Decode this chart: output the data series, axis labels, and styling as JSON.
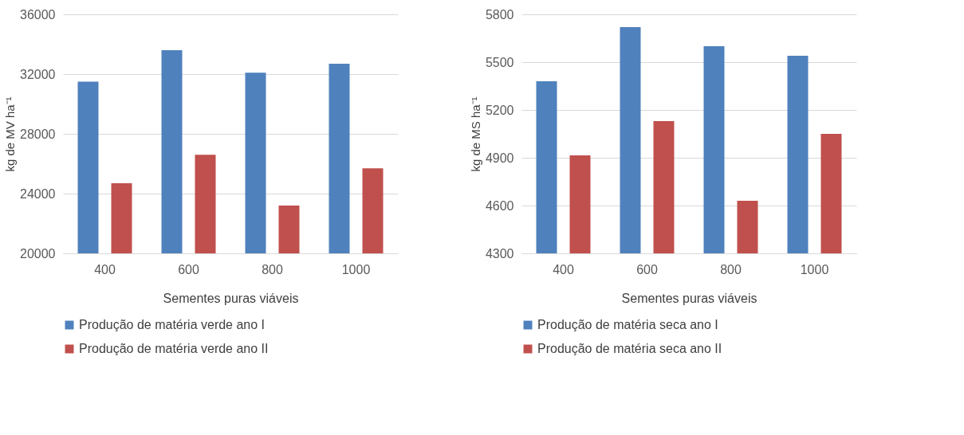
{
  "chart_data": [
    {
      "type": "bar",
      "xlabel": "Sementes puras viáveis",
      "ylabel": "kg de MV ha⁻¹",
      "categories": [
        "400",
        "600",
        "800",
        "1000"
      ],
      "ylim": [
        20000,
        36000
      ],
      "yticks": [
        20000,
        24000,
        28000,
        32000,
        36000
      ],
      "grid": "y",
      "legend": "bottom",
      "series": [
        {
          "name": "Produção de matéria verde ano I",
          "color": "#4f81bd",
          "values": [
            31500,
            33600,
            32100,
            32700
          ]
        },
        {
          "name": "Produção de matéria verde ano II",
          "color": "#c0504d",
          "values": [
            24700,
            26600,
            23200,
            25700
          ]
        }
      ]
    },
    {
      "type": "bar",
      "xlabel": "Sementes puras viáveis",
      "ylabel": "kg de MS ha⁻¹",
      "categories": [
        "400",
        "600",
        "800",
        "1000"
      ],
      "ylim": [
        4300,
        5800
      ],
      "yticks": [
        4300,
        4600,
        4900,
        5200,
        5500,
        5800
      ],
      "grid": "y",
      "legend": "bottom",
      "series": [
        {
          "name": "Produção de matéria seca ano I",
          "color": "#4f81bd",
          "values": [
            5380,
            5720,
            5600,
            5540
          ]
        },
        {
          "name": "Produção de matéria seca ano II",
          "color": "#c0504d",
          "values": [
            4915,
            5130,
            4630,
            5050
          ]
        }
      ]
    }
  ]
}
